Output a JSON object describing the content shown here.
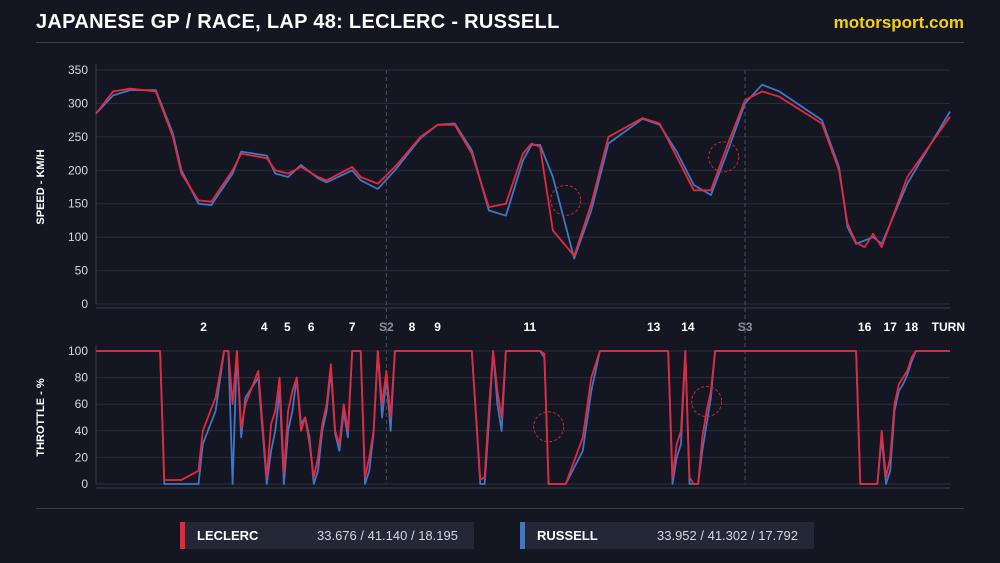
{
  "header": {
    "title": "JAPANESE GP / RACE, LAP 48: LECLERC - RUSSELL",
    "brand": "motorsport.com"
  },
  "colors": {
    "background": "#141722",
    "leclerc": "#e8283a",
    "russell": "#3f76c8",
    "highlight_circle": "#c8283a"
  },
  "legend": [
    {
      "name": "LECLERC",
      "times": "33.676 / 41.140 / 18.195",
      "color": "#e8283a"
    },
    {
      "name": "RUSSELL",
      "times": "33.952 / 41.302 / 17.792",
      "color": "#3f76c8"
    }
  ],
  "turn_axis": {
    "label": "TURN",
    "markers": [
      "2",
      "4",
      "5",
      "6",
      "7",
      "S2",
      "8",
      "9",
      "11",
      "13",
      "14",
      "S3",
      "16",
      "17",
      "18"
    ],
    "sector_markers": [
      "S2",
      "S3"
    ]
  },
  "chart_data": [
    {
      "type": "line",
      "ylabel": "SPEED - KM/H",
      "ylim": [
        0,
        350
      ],
      "yticks": [
        0,
        50,
        100,
        150,
        200,
        250,
        300,
        350
      ],
      "xlim": [
        0,
        1
      ],
      "grid": true,
      "series": [
        {
          "name": "LECLERC",
          "x": [
            0,
            0.02,
            0.04,
            0.07,
            0.09,
            0.1,
            0.12,
            0.135,
            0.16,
            0.17,
            0.2,
            0.21,
            0.225,
            0.24,
            0.26,
            0.27,
            0.3,
            0.31,
            0.33,
            0.35,
            0.38,
            0.4,
            0.42,
            0.44,
            0.46,
            0.48,
            0.5,
            0.51,
            0.52,
            0.535,
            0.56,
            0.58,
            0.6,
            0.64,
            0.66,
            0.68,
            0.7,
            0.72,
            0.74,
            0.76,
            0.78,
            0.8,
            0.85,
            0.87,
            0.88,
            0.89,
            0.9,
            0.91,
            0.92,
            0.95,
            1
          ],
          "values": [
            285,
            318,
            322,
            318,
            250,
            195,
            155,
            153,
            200,
            225,
            218,
            200,
            195,
            205,
            190,
            185,
            205,
            190,
            180,
            205,
            250,
            268,
            268,
            225,
            145,
            150,
            225,
            240,
            235,
            110,
            72,
            150,
            250,
            278,
            270,
            220,
            170,
            170,
            240,
            305,
            318,
            310,
            270,
            200,
            120,
            92,
            85,
            105,
            85,
            190,
            280
          ]
        },
        {
          "name": "RUSSELL",
          "x": [
            0,
            0.02,
            0.04,
            0.07,
            0.09,
            0.1,
            0.12,
            0.135,
            0.16,
            0.17,
            0.2,
            0.21,
            0.225,
            0.24,
            0.26,
            0.27,
            0.3,
            0.31,
            0.33,
            0.35,
            0.38,
            0.4,
            0.42,
            0.44,
            0.46,
            0.48,
            0.5,
            0.51,
            0.52,
            0.535,
            0.56,
            0.58,
            0.6,
            0.64,
            0.66,
            0.68,
            0.7,
            0.72,
            0.74,
            0.76,
            0.78,
            0.8,
            0.85,
            0.87,
            0.88,
            0.89,
            0.9,
            0.91,
            0.92,
            0.95,
            1
          ],
          "values": [
            285,
            312,
            320,
            320,
            255,
            200,
            150,
            148,
            195,
            228,
            222,
            195,
            190,
            208,
            188,
            182,
            200,
            185,
            172,
            200,
            248,
            268,
            270,
            230,
            140,
            132,
            215,
            238,
            238,
            190,
            68,
            140,
            240,
            277,
            268,
            228,
            178,
            163,
            230,
            300,
            328,
            318,
            275,
            205,
            115,
            90,
            95,
            100,
            90,
            180,
            288
          ]
        }
      ]
    },
    {
      "type": "line",
      "ylabel": "THROTTLE - %",
      "ylim": [
        0,
        100
      ],
      "yticks": [
        0,
        20,
        40,
        60,
        80,
        100
      ],
      "xlim": [
        0,
        1
      ],
      "grid": true,
      "series": [
        {
          "name": "LECLERC",
          "x": [
            0,
            0.075,
            0.08,
            0.1,
            0.12,
            0.125,
            0.14,
            0.15,
            0.155,
            0.16,
            0.165,
            0.17,
            0.175,
            0.19,
            0.2,
            0.205,
            0.21,
            0.215,
            0.22,
            0.225,
            0.23,
            0.235,
            0.24,
            0.245,
            0.25,
            0.255,
            0.26,
            0.265,
            0.27,
            0.275,
            0.28,
            0.285,
            0.29,
            0.295,
            0.3,
            0.305,
            0.31,
            0.315,
            0.32,
            0.325,
            0.33,
            0.335,
            0.34,
            0.345,
            0.35,
            0.355,
            0.36,
            0.365,
            0.37,
            0.375,
            0.38,
            0.385,
            0.39,
            0.4,
            0.44,
            0.45,
            0.455,
            0.46,
            0.465,
            0.47,
            0.475,
            0.48,
            0.485,
            0.49,
            0.5,
            0.51,
            0.52,
            0.525,
            0.53,
            0.535,
            0.54,
            0.545,
            0.55,
            0.57,
            0.58,
            0.59,
            0.6,
            0.61,
            0.66,
            0.67,
            0.675,
            0.68,
            0.685,
            0.69,
            0.695,
            0.7,
            0.705,
            0.71,
            0.715,
            0.72,
            0.725,
            0.73,
            0.74,
            0.76,
            0.8,
            0.83,
            0.86,
            0.885,
            0.89,
            0.895,
            0.9,
            0.905,
            0.91,
            0.915,
            0.92,
            0.925,
            0.93,
            0.935,
            0.94,
            0.945,
            0.95,
            0.955,
            0.96,
            0.97,
            1
          ],
          "values": [
            100,
            100,
            3,
            3,
            10,
            40,
            65,
            100,
            100,
            60,
            100,
            42,
            60,
            85,
            5,
            45,
            55,
            80,
            8,
            55,
            70,
            80,
            40,
            50,
            30,
            5,
            20,
            45,
            60,
            90,
            40,
            30,
            60,
            40,
            100,
            100,
            100,
            5,
            20,
            40,
            100,
            60,
            85,
            50,
            100,
            100,
            100,
            100,
            100,
            100,
            100,
            100,
            100,
            100,
            100,
            3,
            5,
            55,
            100,
            70,
            50,
            100,
            100,
            100,
            100,
            100,
            100,
            98,
            0,
            0,
            0,
            0,
            0,
            35,
            80,
            100,
            100,
            100,
            100,
            100,
            5,
            30,
            40,
            100,
            5,
            0,
            0,
            35,
            55,
            70,
            100,
            100,
            100,
            100,
            100,
            100,
            100,
            100,
            100,
            0,
            0,
            0,
            0,
            0,
            40,
            5,
            20,
            60,
            75,
            80,
            85,
            95,
            100,
            100,
            100
          ]
        },
        {
          "name": "RUSSELL",
          "x": [
            0,
            0.075,
            0.08,
            0.1,
            0.12,
            0.125,
            0.14,
            0.15,
            0.155,
            0.16,
            0.165,
            0.17,
            0.175,
            0.19,
            0.2,
            0.205,
            0.21,
            0.215,
            0.22,
            0.225,
            0.23,
            0.235,
            0.24,
            0.245,
            0.25,
            0.255,
            0.26,
            0.265,
            0.27,
            0.275,
            0.28,
            0.285,
            0.29,
            0.295,
            0.3,
            0.305,
            0.31,
            0.315,
            0.32,
            0.325,
            0.33,
            0.335,
            0.34,
            0.345,
            0.35,
            0.355,
            0.36,
            0.365,
            0.37,
            0.375,
            0.38,
            0.385,
            0.39,
            0.4,
            0.44,
            0.45,
            0.455,
            0.46,
            0.465,
            0.47,
            0.475,
            0.48,
            0.485,
            0.49,
            0.5,
            0.51,
            0.52,
            0.525,
            0.53,
            0.535,
            0.54,
            0.545,
            0.55,
            0.57,
            0.58,
            0.59,
            0.6,
            0.61,
            0.66,
            0.67,
            0.675,
            0.68,
            0.685,
            0.69,
            0.695,
            0.7,
            0.705,
            0.71,
            0.715,
            0.72,
            0.725,
            0.73,
            0.74,
            0.76,
            0.8,
            0.83,
            0.86,
            0.885,
            0.89,
            0.895,
            0.9,
            0.905,
            0.91,
            0.915,
            0.92,
            0.925,
            0.93,
            0.935,
            0.94,
            0.945,
            0.95,
            0.955,
            0.96,
            0.97,
            1
          ],
          "values": [
            100,
            100,
            0,
            0,
            0,
            30,
            55,
            100,
            100,
            0,
            100,
            35,
            65,
            80,
            0,
            25,
            40,
            70,
            0,
            40,
            55,
            80,
            45,
            50,
            35,
            0,
            10,
            40,
            55,
            85,
            38,
            25,
            55,
            35,
            100,
            100,
            100,
            0,
            10,
            38,
            100,
            50,
            80,
            40,
            100,
            100,
            100,
            100,
            100,
            100,
            100,
            100,
            100,
            100,
            100,
            0,
            0,
            45,
            100,
            60,
            40,
            100,
            100,
            100,
            100,
            100,
            100,
            95,
            0,
            0,
            0,
            0,
            0,
            25,
            70,
            100,
            100,
            100,
            100,
            100,
            0,
            20,
            30,
            100,
            0,
            0,
            0,
            25,
            45,
            65,
            100,
            100,
            100,
            100,
            100,
            100,
            100,
            100,
            100,
            0,
            0,
            0,
            0,
            0,
            35,
            0,
            10,
            55,
            70,
            75,
            82,
            92,
            100,
            100,
            100
          ]
        }
      ]
    }
  ]
}
